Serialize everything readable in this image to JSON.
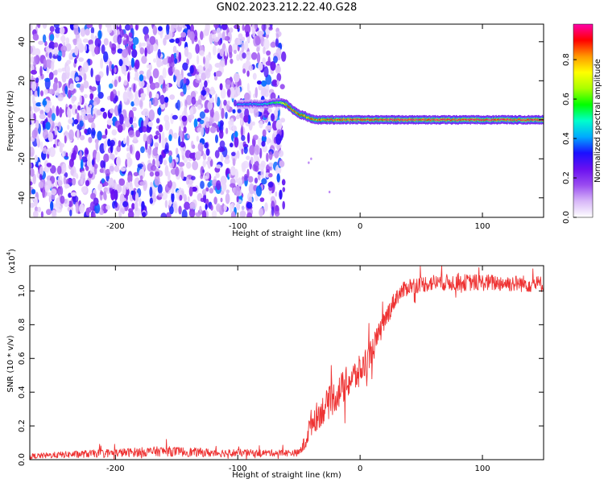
{
  "title": "GN02.2023.212.22.40.G28",
  "colors": {
    "snr_line": "#ee3333",
    "colormap": [
      "#ffffff",
      "#d8b8f8",
      "#9a4cf0",
      "#6a10f0",
      "#1a10ff",
      "#00aaff",
      "#00ffcc",
      "#00ff00",
      "#aaff00",
      "#ffff00",
      "#ff9900",
      "#ff0000",
      "#ff00aa"
    ]
  },
  "chart_data": [
    {
      "type": "heatmap",
      "title": "GN02.2023.212.22.40.G28",
      "xlabel": "Height of straight line (km)",
      "ylabel": "Frequency (Hz)",
      "xlim": [
        -270,
        150
      ],
      "ylim": [
        -50,
        49
      ],
      "x_ticks": [
        -200,
        -100,
        0,
        100
      ],
      "x_tick_labels": [
        "-200",
        "-100",
        "0",
        "100"
      ],
      "y_ticks": [
        -40,
        -20,
        0,
        20,
        40
      ],
      "y_tick_labels": [
        "-40",
        "-20",
        "0",
        "20",
        "40"
      ],
      "noise_region_x": [
        -270,
        -65
      ],
      "signal_track": {
        "x": [
          -100,
          -80,
          -66,
          -60,
          -55,
          -50,
          -45,
          -40,
          -35,
          -20,
          0,
          40,
          80,
          120,
          150
        ],
        "frequency": [
          8,
          8,
          9,
          8,
          5,
          3,
          2,
          0.5,
          0,
          0,
          0,
          0,
          0,
          0,
          0
        ],
        "amplitude": [
          0.4,
          0.45,
          0.6,
          0.85,
          0.9,
          0.9,
          0.85,
          0.85,
          0.85,
          0.9,
          0.95,
          0.95,
          0.95,
          0.95,
          0.95
        ]
      },
      "colorbar": {
        "label": "Normalized spectral amplitude",
        "range": [
          0,
          0.98
        ],
        "ticks": [
          0.0,
          0.2,
          0.4,
          0.6,
          0.8
        ],
        "tick_labels": [
          "0.0",
          "0.2",
          "0.4",
          "0.6",
          "0.8"
        ]
      }
    },
    {
      "type": "line",
      "xlabel": "Height of straight line (km)",
      "ylabel": "SNR (10 * v/v)",
      "y_multiplier": "(x10",
      "y_multiplier_exp": "4",
      "y_multiplier_close": ")",
      "xlim": [
        -270,
        150
      ],
      "ylim": [
        0,
        1.15
      ],
      "x_ticks": [
        -200,
        -100,
        0,
        100
      ],
      "x_tick_labels": [
        "-200",
        "-100",
        "0",
        "100"
      ],
      "y_ticks": [
        0.0,
        0.2,
        0.4,
        0.6,
        0.8,
        1.0
      ],
      "y_tick_labels": [
        "0.0",
        "0.2",
        "0.4",
        "0.6",
        "0.8",
        "1.0"
      ],
      "series": [
        {
          "x": [
            -270,
            -240,
            -200,
            -160,
            -120,
            -80,
            -60,
            -50,
            -45,
            -40,
            -30,
            -20,
            -10,
            0,
            10,
            20,
            25,
            30,
            40,
            60,
            100,
            150
          ],
          "values": [
            0.02,
            0.03,
            0.04,
            0.05,
            0.04,
            0.04,
            0.04,
            0.04,
            0.1,
            0.22,
            0.3,
            0.38,
            0.46,
            0.52,
            0.65,
            0.82,
            0.9,
            0.97,
            1.03,
            1.05,
            1.05,
            1.04
          ],
          "noise": [
            0.015,
            0.02,
            0.025,
            0.03,
            0.025,
            0.02,
            0.02,
            0.02,
            0.05,
            0.08,
            0.09,
            0.1,
            0.1,
            0.1,
            0.08,
            0.06,
            0.06,
            0.05,
            0.05,
            0.05,
            0.05,
            0.05
          ]
        }
      ]
    }
  ]
}
